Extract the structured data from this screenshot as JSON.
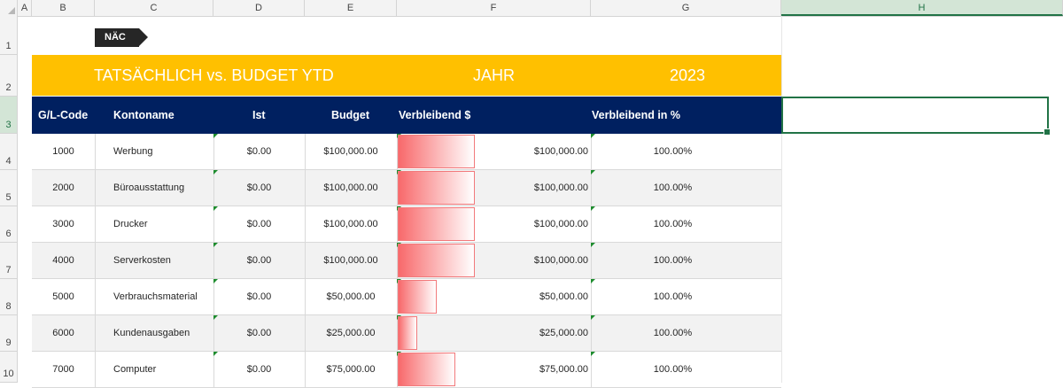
{
  "column_headers": [
    "A",
    "B",
    "C",
    "D",
    "E",
    "F",
    "G",
    "H"
  ],
  "row_headers": [
    "1",
    "2",
    "3",
    "4",
    "5",
    "6",
    "7",
    "8",
    "9",
    "10"
  ],
  "nav_button": "NÄC",
  "banner": {
    "title": "TATSÄCHLICH vs. BUDGET YTD",
    "year_label": "JAHR",
    "year_value": "2023",
    "color": "#ffc000"
  },
  "table": {
    "header_color": "#002060",
    "columns": [
      "G/L-Code",
      "Kontoname",
      "Ist",
      "Budget",
      "Verbleibend $",
      "Verbleibend in %"
    ],
    "rows": [
      {
        "code": "1000",
        "name": "Werbung",
        "actual": "$0.00",
        "budget": "$100,000.00",
        "remaining": "$100,000.00",
        "remaining_pct": "100.00%",
        "bar_fraction": 1.0
      },
      {
        "code": "2000",
        "name": "Büroausstattung",
        "actual": "$0.00",
        "budget": "$100,000.00",
        "remaining": "$100,000.00",
        "remaining_pct": "100.00%",
        "bar_fraction": 1.0
      },
      {
        "code": "3000",
        "name": "Drucker",
        "actual": "$0.00",
        "budget": "$100,000.00",
        "remaining": "$100,000.00",
        "remaining_pct": "100.00%",
        "bar_fraction": 1.0
      },
      {
        "code": "4000",
        "name": "Serverkosten",
        "actual": "$0.00",
        "budget": "$100,000.00",
        "remaining": "$100,000.00",
        "remaining_pct": "100.00%",
        "bar_fraction": 1.0
      },
      {
        "code": "5000",
        "name": "Verbrauchsmaterial",
        "actual": "$0.00",
        "budget": "$50,000.00",
        "remaining": "$50,000.00",
        "remaining_pct": "100.00%",
        "bar_fraction": 0.5
      },
      {
        "code": "6000",
        "name": "Kundenausgaben",
        "actual": "$0.00",
        "budget": "$25,000.00",
        "remaining": "$25,000.00",
        "remaining_pct": "100.00%",
        "bar_fraction": 0.25
      },
      {
        "code": "7000",
        "name": "Computer",
        "actual": "$0.00",
        "budget": "$75,000.00",
        "remaining": "$75,000.00",
        "remaining_pct": "100.00%",
        "bar_fraction": 0.75
      }
    ]
  },
  "selected_cell": "H3"
}
